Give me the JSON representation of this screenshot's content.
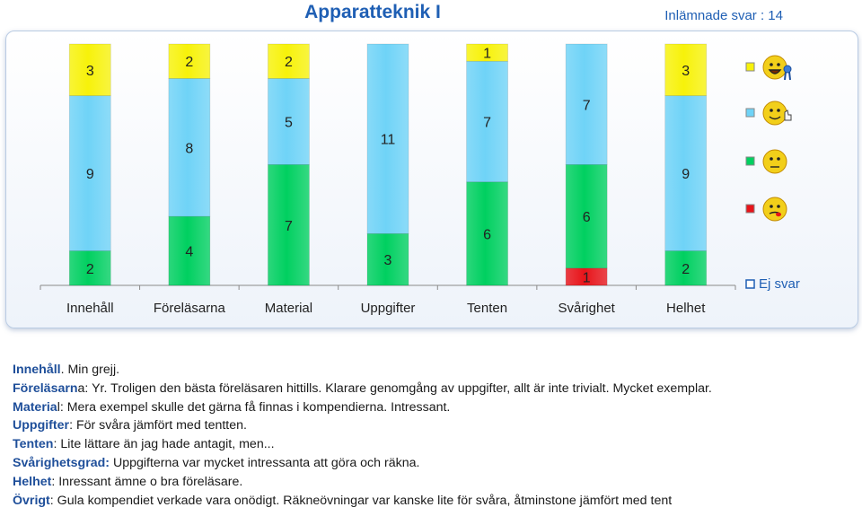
{
  "header": {
    "title": "Apparatteknik I",
    "submitted": "Inlämnade svar : 14"
  },
  "chart_data": {
    "type": "bar",
    "stacked": true,
    "categories": [
      "Innehåll",
      "Föreläsarna",
      "Material",
      "Uppgifter",
      "Tenten",
      "Svårighet",
      "Helhet"
    ],
    "series": [
      {
        "color": "#e8141a",
        "values": [
          0,
          0,
          0,
          0,
          0,
          1,
          0
        ]
      },
      {
        "color": "#00d060",
        "values": [
          2,
          4,
          7,
          3,
          6,
          6,
          2
        ]
      },
      {
        "color": "#6fd3f7",
        "values": [
          9,
          8,
          5,
          11,
          7,
          7,
          9
        ]
      },
      {
        "color": "#f7f20a",
        "values": [
          3,
          2,
          2,
          0,
          1,
          0,
          3
        ]
      }
    ],
    "legend": [
      {
        "color": "#f7f20a",
        "icon": "ecstatic-smiley-with-ribbon-icon"
      },
      {
        "color": "#6fd3f7",
        "icon": "thumbs-up-smiley-icon"
      },
      {
        "color": "#00d060",
        "icon": "neutral-smiley-icon"
      },
      {
        "color": "#e8141a",
        "icon": "tongue-out-smiley-icon"
      },
      {
        "color": "#ffffff",
        "label": "Ej svar"
      }
    ],
    "legend_position": "right",
    "ylim": [
      0,
      14
    ],
    "grid": false
  },
  "comments": [
    {
      "label": "Innehåll",
      "text": ". Min grejj."
    },
    {
      "label": "Föreläsarn",
      "text": "a: Yr. Troligen den bästa föreläsaren hittills. Klarare genomgång av uppgifter, allt är inte trivialt. Mycket exemplar."
    },
    {
      "label": "Materia",
      "text": "l: Mera exempel skulle det gärna få finnas i kompendierna.  Intressant."
    },
    {
      "label": "Uppgifter",
      "text": ": För svåra jämfört med tentten."
    },
    {
      "label": "Tenten",
      "text": ": Lite lättare än jag hade antagit, men..."
    },
    {
      "label": "Svårighetsgrad:",
      "text": " Uppgifterna var mycket intressanta att göra och räkna."
    },
    {
      "label": "Helhet",
      "text": ": Inressant ämne o bra föreläsare."
    },
    {
      "label": "Övrigt",
      "text": ": Gula kompendiet verkade vara onödigt. Räkneövningar var kanske lite för svåra, åtminstone jämfört med tent"
    }
  ]
}
